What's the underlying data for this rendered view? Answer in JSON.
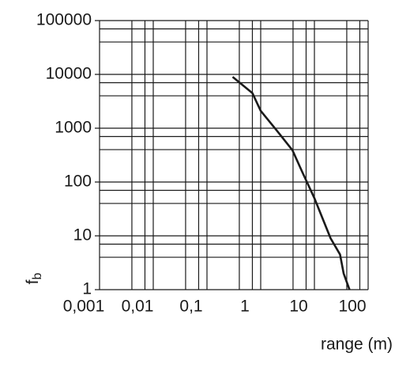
{
  "chart_data": {
    "type": "line",
    "x_label": "range (m)",
    "y_label_base": "f",
    "y_label_sub": "b",
    "log_x": true,
    "log_y": true,
    "grid": true,
    "minor_grid_multipliers": [
      4,
      7
    ],
    "xlim": [
      0.001,
      100
    ],
    "ylim": [
      1,
      100000
    ],
    "xticks": [
      {
        "value": 0.001,
        "label": "0,001"
      },
      {
        "value": 0.01,
        "label": "0,01"
      },
      {
        "value": 0.1,
        "label": "0,1"
      },
      1,
      10,
      100
    ],
    "yticks": [
      1,
      10,
      100,
      1000,
      10000,
      100000
    ],
    "series": [
      {
        "color": "#1a1a1a",
        "x": [
          0.3,
          0.7,
          1,
          2,
          3.9,
          6,
          10,
          20,
          30,
          35,
          45
        ],
        "values": [
          9000,
          4500,
          2100,
          900,
          390,
          150,
          50,
          9,
          4.5,
          2,
          1
        ]
      }
    ]
  }
}
